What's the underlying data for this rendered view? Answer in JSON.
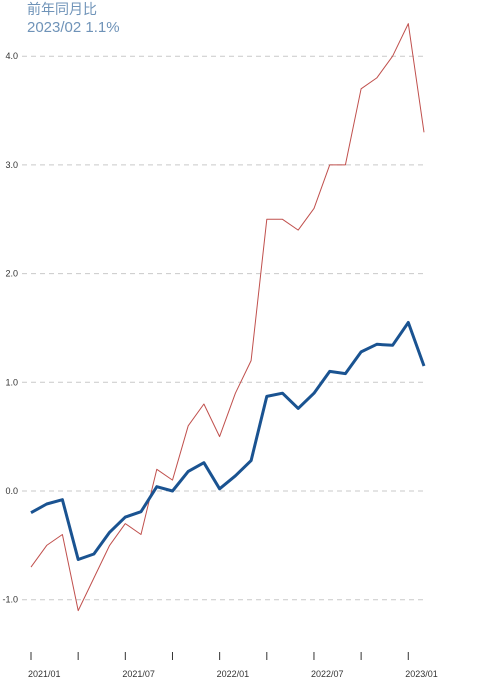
{
  "header": {
    "subtitle": "前年同月比",
    "headline": "2023/02 1.1%"
  },
  "chart_data": {
    "type": "line",
    "title": "",
    "xlabel": "",
    "ylabel": "",
    "x": [
      "2021/01",
      "2021/02",
      "2021/03",
      "2021/04",
      "2021/05",
      "2021/06",
      "2021/07",
      "2021/08",
      "2021/09",
      "2021/10",
      "2021/11",
      "2021/12",
      "2022/01",
      "2022/02",
      "2022/03",
      "2022/04",
      "2022/05",
      "2022/06",
      "2022/07",
      "2022/08",
      "2022/09",
      "2022/10",
      "2022/11",
      "2022/12",
      "2023/01",
      "2023/02"
    ],
    "x_tick_labels": [
      "2021/01",
      "2021/07",
      "2022/01",
      "2022/07",
      "2023/01"
    ],
    "y_tick_labels": [
      "4.0",
      "3.0",
      "2.0",
      "1.0",
      "0.0",
      "-1.0"
    ],
    "ylim": [
      -1.4,
      4.4
    ],
    "grid": true,
    "series": [
      {
        "color": "#c0504d",
        "values": [
          -0.7,
          -0.5,
          -0.4,
          -1.1,
          -0.8,
          -0.5,
          -0.3,
          -0.4,
          0.2,
          0.1,
          0.6,
          0.8,
          0.5,
          0.9,
          1.2,
          2.5,
          2.5,
          2.4,
          2.6,
          3.0,
          3.0,
          3.7,
          3.8,
          4.0,
          4.3,
          3.3
        ]
      },
      {
        "color": "#1a5391",
        "values": [
          -0.2,
          -0.12,
          -0.08,
          -0.63,
          -0.58,
          -0.38,
          -0.24,
          -0.19,
          0.04,
          0.0,
          0.18,
          0.26,
          0.02,
          0.14,
          0.28,
          0.87,
          0.9,
          0.76,
          0.9,
          1.1,
          1.08,
          1.28,
          1.35,
          1.34,
          1.55,
          1.15
        ]
      }
    ]
  }
}
